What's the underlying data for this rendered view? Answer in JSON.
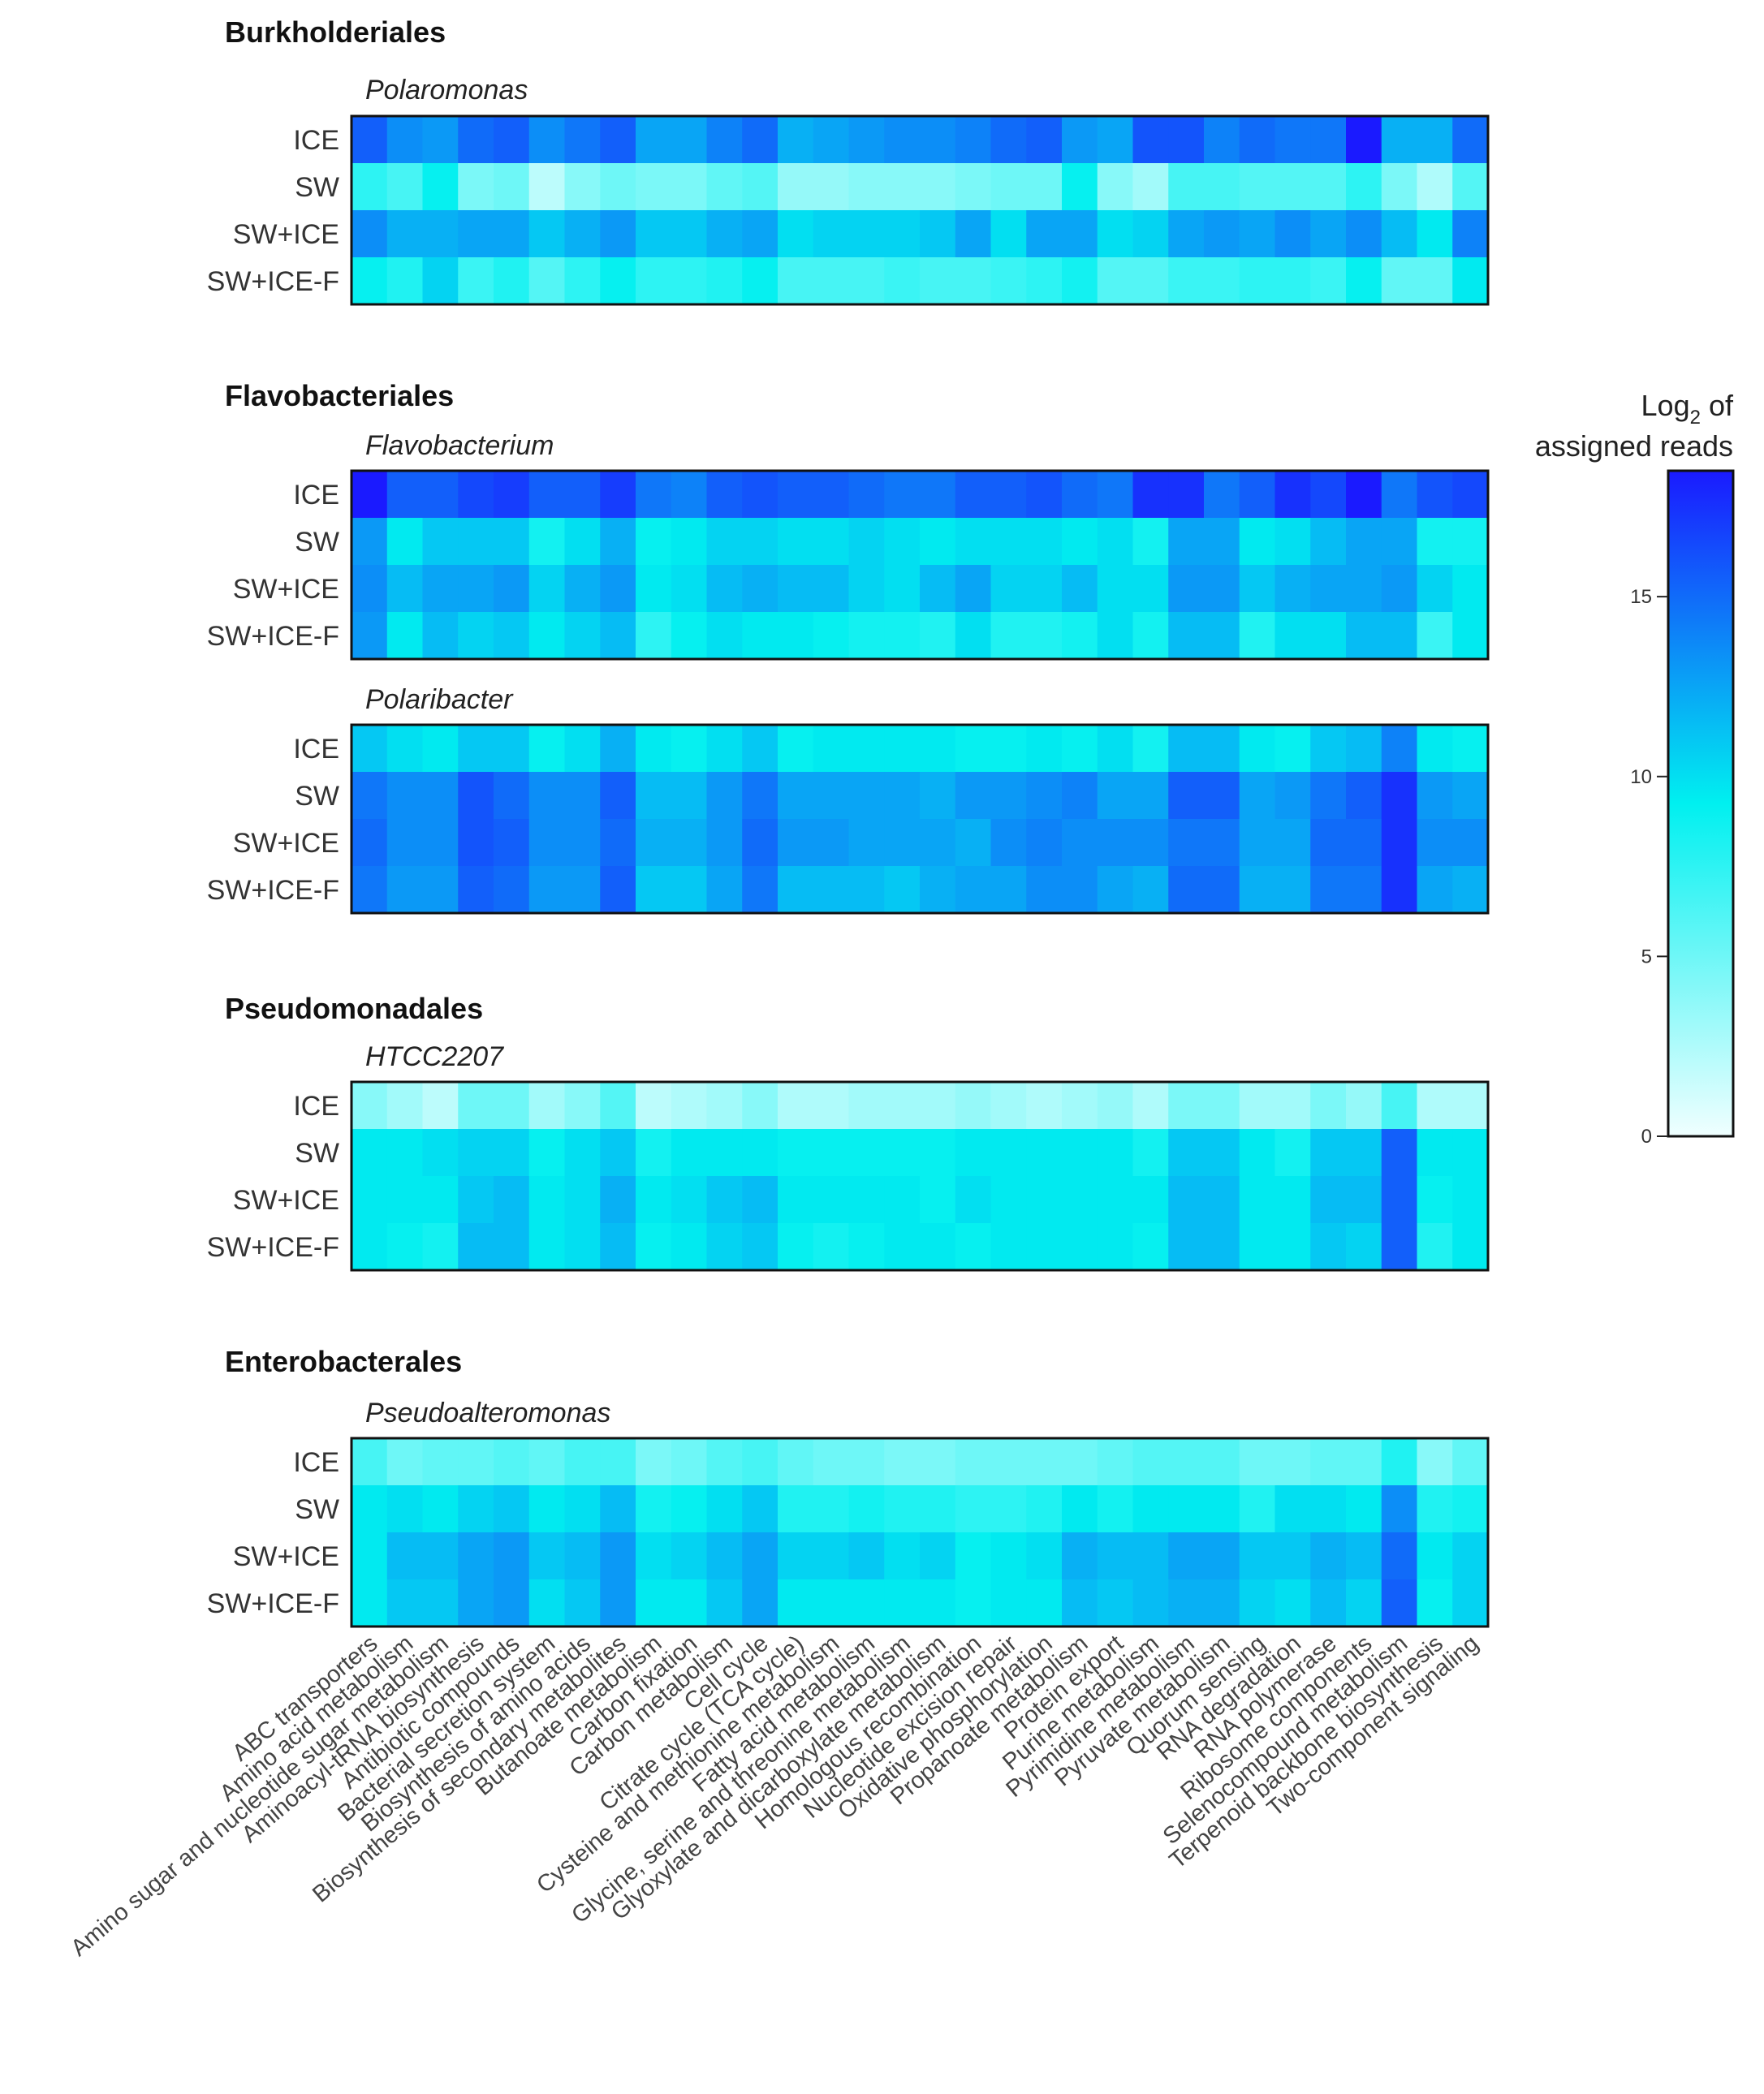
{
  "chart_data": {
    "type": "heatmap",
    "colorbar": {
      "title_line1": "Log",
      "title_subscript": "2",
      "title_line1_suffix": " of",
      "title_line2": "assigned reads",
      "ticks": [
        0,
        5,
        10,
        15
      ],
      "range": [
        0,
        18.5
      ],
      "colors": [
        "#f0ffff",
        "#00f0f0",
        "#1a1aff"
      ]
    },
    "row_labels": [
      "ICE",
      "SW",
      "SW+ICE",
      "SW+ICE-F"
    ],
    "categories": [
      "ABC transporters",
      "Amino acid metabolism",
      "Amino sugar and nucleotide sugar metabolism",
      "Aminoacyl-tRNA biosynthesis",
      "Antibiotic compounds",
      "Bacterial secretion system",
      "Biosynthesis of amino acids",
      "Biosynthesis of secondary metabolites",
      "Butanoate metabolism",
      "Carbon fixation",
      "Carbon metabolism",
      "Cell cycle",
      "Citrate cycle (TCA cycle)",
      "Cysteine and methionine metabolism",
      "Fatty acid metabolism",
      "Glycine, serine and threonine metabolism",
      "Glyoxylate and dicarboxylate metabolism",
      "Homologous recombination",
      "Nucleotide excision repair",
      "Oxidative phosphorylation",
      "Propanoate metabolism",
      "Protein export",
      "Purine metabolism",
      "Pyrimidine metabolism",
      "Pyruvate metabolism",
      "Quorum sensing",
      "RNA degradation",
      "RNA polymerase",
      "Ribosome components",
      "Selenocompound metabolism",
      "Terpenoid backbone biosynthesis",
      "Two-component signaling"
    ],
    "panels": [
      {
        "order": "Burkholderiales",
        "genus": "Polaromonas",
        "values": [
          [
            15.5,
            13.5,
            13,
            15,
            15.5,
            13.5,
            14.5,
            15.5,
            12.5,
            12.5,
            14,
            15,
            12,
            12.5,
            13,
            13.5,
            13.5,
            14,
            15,
            15.5,
            13,
            12.5,
            16,
            16,
            14,
            15,
            14.5,
            14.5,
            18.5,
            12,
            12,
            15
          ],
          [
            7.5,
            6.5,
            9,
            4.5,
            5,
            2,
            4,
            5,
            4.5,
            4.5,
            5.5,
            6,
            3.5,
            3.5,
            4,
            4,
            4,
            4.5,
            5,
            5,
            9,
            4,
            3,
            6.5,
            6.5,
            6,
            6,
            6,
            7.5,
            4.5,
            2.5,
            6
          ],
          [
            13.5,
            12,
            12,
            12.5,
            12.5,
            11,
            12,
            13,
            11,
            11,
            12,
            12.5,
            10,
            10.5,
            10.5,
            10.5,
            11,
            12.5,
            10,
            12.5,
            12.5,
            10,
            10.5,
            12.5,
            13,
            12.5,
            13.5,
            12.5,
            13.5,
            11.5,
            9.5,
            14
          ],
          [
            9,
            8,
            10.5,
            7,
            8,
            6,
            7.5,
            9,
            7.5,
            7.5,
            8,
            9,
            6.5,
            6.5,
            6.5,
            7,
            6.5,
            6.5,
            7,
            7.5,
            8.5,
            6,
            6,
            7,
            7,
            7.5,
            7.5,
            7,
            9,
            5.5,
            5.5,
            9.5
          ]
        ]
      },
      {
        "order": "Flavobacteriales",
        "genus": "Flavobacterium",
        "values": [
          [
            18.5,
            15.5,
            15.5,
            16.5,
            17,
            15.5,
            15.5,
            17,
            14.5,
            14,
            15.5,
            16,
            15.5,
            15.5,
            15,
            14.5,
            14.5,
            15.5,
            15.5,
            16,
            15,
            14.5,
            17.5,
            17.5,
            14.5,
            15.5,
            17.5,
            16.5,
            18.5,
            14.5,
            16,
            16.5
          ],
          [
            13,
            9.5,
            11,
            11,
            11,
            8.5,
            10,
            12,
            9,
            9.5,
            10.5,
            10.5,
            10,
            10,
            10.5,
            10,
            9.5,
            10,
            10,
            10,
            9.5,
            10,
            8.5,
            12.5,
            12.5,
            9.5,
            10,
            11.5,
            12.5,
            12.5,
            8.5,
            8.5
          ],
          [
            13.5,
            11.5,
            12.5,
            12.5,
            13,
            10.5,
            12,
            13,
            9.5,
            10,
            11.5,
            12,
            11.5,
            11.5,
            10.5,
            10,
            11.5,
            12.5,
            10.5,
            10.5,
            11.5,
            10,
            10,
            13,
            13,
            11,
            12,
            12.5,
            12.5,
            13,
            10.5,
            9.5
          ],
          [
            13,
            9.5,
            11.5,
            10.5,
            11,
            9.5,
            10.5,
            11.5,
            7.5,
            9,
            10,
            9.5,
            9.5,
            9,
            8.5,
            8.5,
            8,
            10,
            8,
            8,
            8.5,
            10,
            8.5,
            11.5,
            11.5,
            8,
            10,
            10,
            11.5,
            11.5,
            7,
            9.5
          ]
        ]
      },
      {
        "order": "",
        "genus": "Polaribacter",
        "values": [
          [
            11,
            10,
            9.5,
            11,
            11,
            9,
            10,
            12,
            9.5,
            9,
            10,
            11,
            9,
            9.5,
            9.5,
            9.5,
            9.5,
            9,
            9,
            9.5,
            9,
            10,
            8.5,
            11.5,
            11.5,
            9.5,
            9,
            11,
            11.5,
            14,
            9.5,
            9
          ],
          [
            14.5,
            13.5,
            13.5,
            16,
            15,
            13.5,
            13.5,
            15.5,
            11.5,
            11.5,
            13,
            14.5,
            12.5,
            12.5,
            12.5,
            12.5,
            12,
            13,
            13,
            13.5,
            14,
            12.5,
            12.5,
            15.5,
            15.5,
            12.5,
            13,
            14.5,
            15.5,
            17.5,
            13,
            12.5
          ],
          [
            15,
            13.5,
            13.5,
            16,
            15.5,
            13.5,
            13.5,
            15,
            12,
            12,
            13,
            15,
            13,
            13,
            12.5,
            12.5,
            12.5,
            12,
            13.5,
            14,
            13.5,
            13.5,
            13.5,
            14.5,
            14.5,
            12.5,
            12.5,
            15,
            15,
            17.5,
            13.5,
            13.5
          ],
          [
            14.5,
            13,
            13,
            15.5,
            15,
            13,
            13,
            15.5,
            11,
            11,
            12.5,
            14.5,
            11.5,
            11.5,
            11.5,
            11,
            12,
            12.5,
            12.5,
            13.5,
            13.5,
            12.5,
            12,
            15,
            15,
            12,
            12,
            14.5,
            14.5,
            17.5,
            12.5,
            12
          ]
        ]
      },
      {
        "order": "Pseudomonadales",
        "genus": "HTCC2207",
        "values": [
          [
            4,
            3,
            2,
            5,
            5,
            3,
            4,
            6,
            2,
            2.5,
            3,
            4,
            2.5,
            2.5,
            3,
            3,
            3,
            3.5,
            3,
            2.5,
            3,
            3.5,
            2.5,
            4.5,
            4.5,
            3,
            3,
            4.5,
            3.5,
            6.5,
            2.5,
            2.5
          ],
          [
            9.5,
            9.5,
            10,
            10.5,
            10.5,
            9,
            10,
            11,
            8.5,
            9.5,
            9.5,
            9.5,
            9,
            9,
            9,
            9,
            9,
            9.5,
            9.5,
            9.5,
            9.5,
            9.5,
            8.5,
            11,
            11,
            9.5,
            8.5,
            11,
            11,
            15.5,
            9.5,
            9.5
          ],
          [
            9.5,
            9.5,
            9.5,
            11,
            11.5,
            9.5,
            10,
            12,
            9.5,
            10,
            11,
            11.5,
            9.5,
            9.5,
            9.5,
            9.5,
            9,
            10,
            9.5,
            9.5,
            9.5,
            9.5,
            9.5,
            11.5,
            11.5,
            9.5,
            9.5,
            11.5,
            11.5,
            15.5,
            9,
            9.5
          ],
          [
            9.5,
            9,
            8.5,
            11.5,
            11.5,
            9.5,
            10,
            11.5,
            9,
            9.5,
            10.5,
            11,
            9,
            8.5,
            9,
            9.5,
            9.5,
            9,
            9.5,
            9.5,
            9.5,
            9.5,
            9,
            11.5,
            11.5,
            9.5,
            9.5,
            11,
            10.5,
            15.5,
            8,
            9.5
          ]
        ]
      },
      {
        "order": "Enterobacterales",
        "genus": "Pseudoalteromonas",
        "values": [
          [
            6.5,
            5,
            5.5,
            5.5,
            6,
            5.5,
            6.5,
            6.5,
            4.5,
            5,
            6,
            6.5,
            5.5,
            5,
            5,
            4.5,
            4.5,
            5,
            5,
            5,
            5,
            5.5,
            6,
            6,
            6,
            5,
            5,
            5.5,
            5.5,
            8,
            4,
            5.5
          ],
          [
            9.5,
            10,
            9.5,
            10.5,
            11,
            9.5,
            10,
            11.5,
            8.5,
            9,
            10,
            11,
            8,
            8,
            8.5,
            8,
            8,
            7.5,
            7.5,
            8,
            9.5,
            8.5,
            9.5,
            9.5,
            9.5,
            8,
            10,
            10,
            9.5,
            13.5,
            8,
            8.5
          ],
          [
            9.5,
            11.5,
            11.5,
            12.5,
            13,
            11,
            11.5,
            13,
            10,
            10.5,
            11.5,
            12.5,
            10.5,
            10.5,
            11,
            10,
            10.5,
            9,
            9.5,
            10,
            12,
            11.5,
            11.5,
            12.5,
            12.5,
            11,
            11,
            12,
            11.5,
            15,
            9.5,
            10.5
          ],
          [
            9.5,
            11,
            11,
            12.5,
            13,
            10,
            11,
            13,
            9.5,
            9.5,
            11,
            12.5,
            9.5,
            9.5,
            9.5,
            9.5,
            9.5,
            9,
            9.5,
            9.5,
            11.5,
            11,
            11.5,
            12,
            12,
            10.5,
            10,
            11.5,
            10.5,
            15.5,
            9,
            10.5
          ]
        ]
      }
    ]
  }
}
